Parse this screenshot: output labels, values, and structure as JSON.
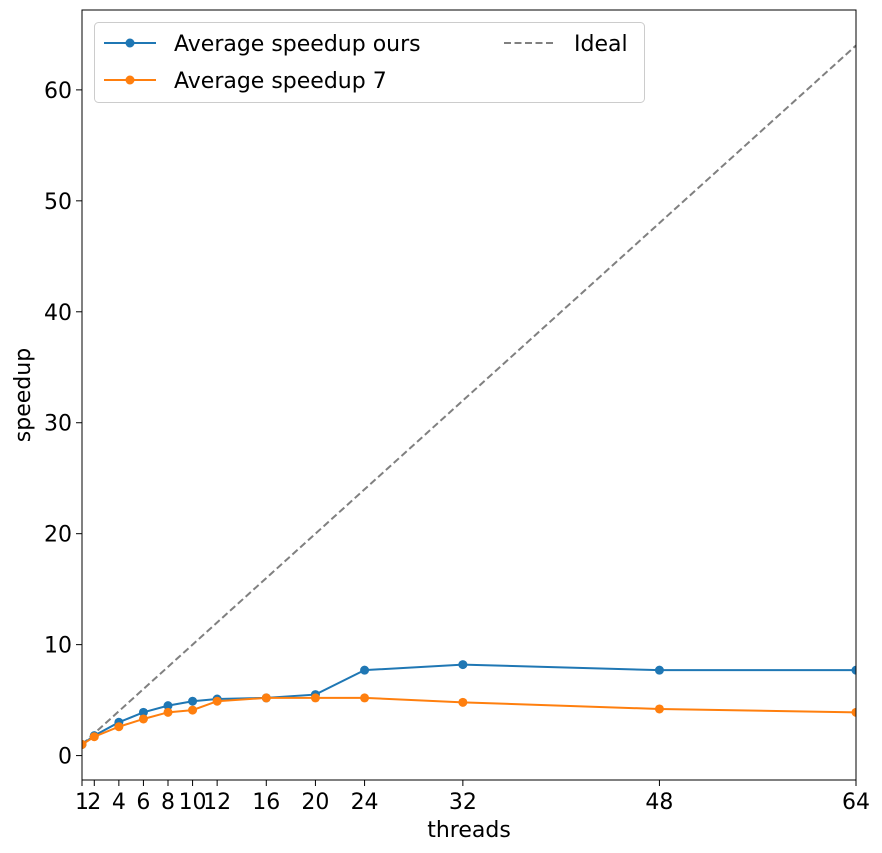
{
  "chart_data": {
    "type": "line",
    "title": "",
    "xlabel": "threads",
    "ylabel": "speedup",
    "x_ticks": [
      1,
      2,
      4,
      6,
      8,
      10,
      12,
      16,
      20,
      24,
      32,
      48,
      64
    ],
    "x_tick_labels": [
      "1",
      "2",
      "4",
      "6",
      "8",
      "10",
      "12",
      "16",
      "20",
      "24",
      "32",
      "48",
      "64"
    ],
    "y_ticks": [
      0,
      10,
      20,
      30,
      40,
      50,
      60
    ],
    "y_tick_labels": [
      "0",
      "10",
      "20",
      "30",
      "40",
      "50",
      "60"
    ],
    "xlim": [
      1,
      64
    ],
    "ylim": [
      -2.2,
      67.2
    ],
    "grid": false,
    "legend": {
      "position": "top-left",
      "columns": 2
    },
    "series": [
      {
        "name": "Average speedup ours",
        "color": "#1f77b4",
        "marker": "circle",
        "style": "solid",
        "x": [
          1,
          2,
          4,
          6,
          8,
          10,
          12,
          16,
          20,
          24,
          32,
          48,
          64
        ],
        "y": [
          1.0,
          1.8,
          3.0,
          3.9,
          4.5,
          4.9,
          5.1,
          5.2,
          5.5,
          7.7,
          8.2,
          7.7,
          7.7
        ]
      },
      {
        "name": "Average speedup 7",
        "color": "#ff7f0e",
        "marker": "circle",
        "style": "solid",
        "x": [
          1,
          2,
          4,
          6,
          8,
          10,
          12,
          16,
          20,
          24,
          32,
          48,
          64
        ],
        "y": [
          1.0,
          1.7,
          2.6,
          3.3,
          3.9,
          4.1,
          4.9,
          5.2,
          5.2,
          5.2,
          4.8,
          4.2,
          3.9
        ]
      },
      {
        "name": "Ideal",
        "color": "#808080",
        "marker": "none",
        "style": "dashed",
        "x": [
          1,
          64
        ],
        "y": [
          1,
          64
        ]
      }
    ]
  }
}
